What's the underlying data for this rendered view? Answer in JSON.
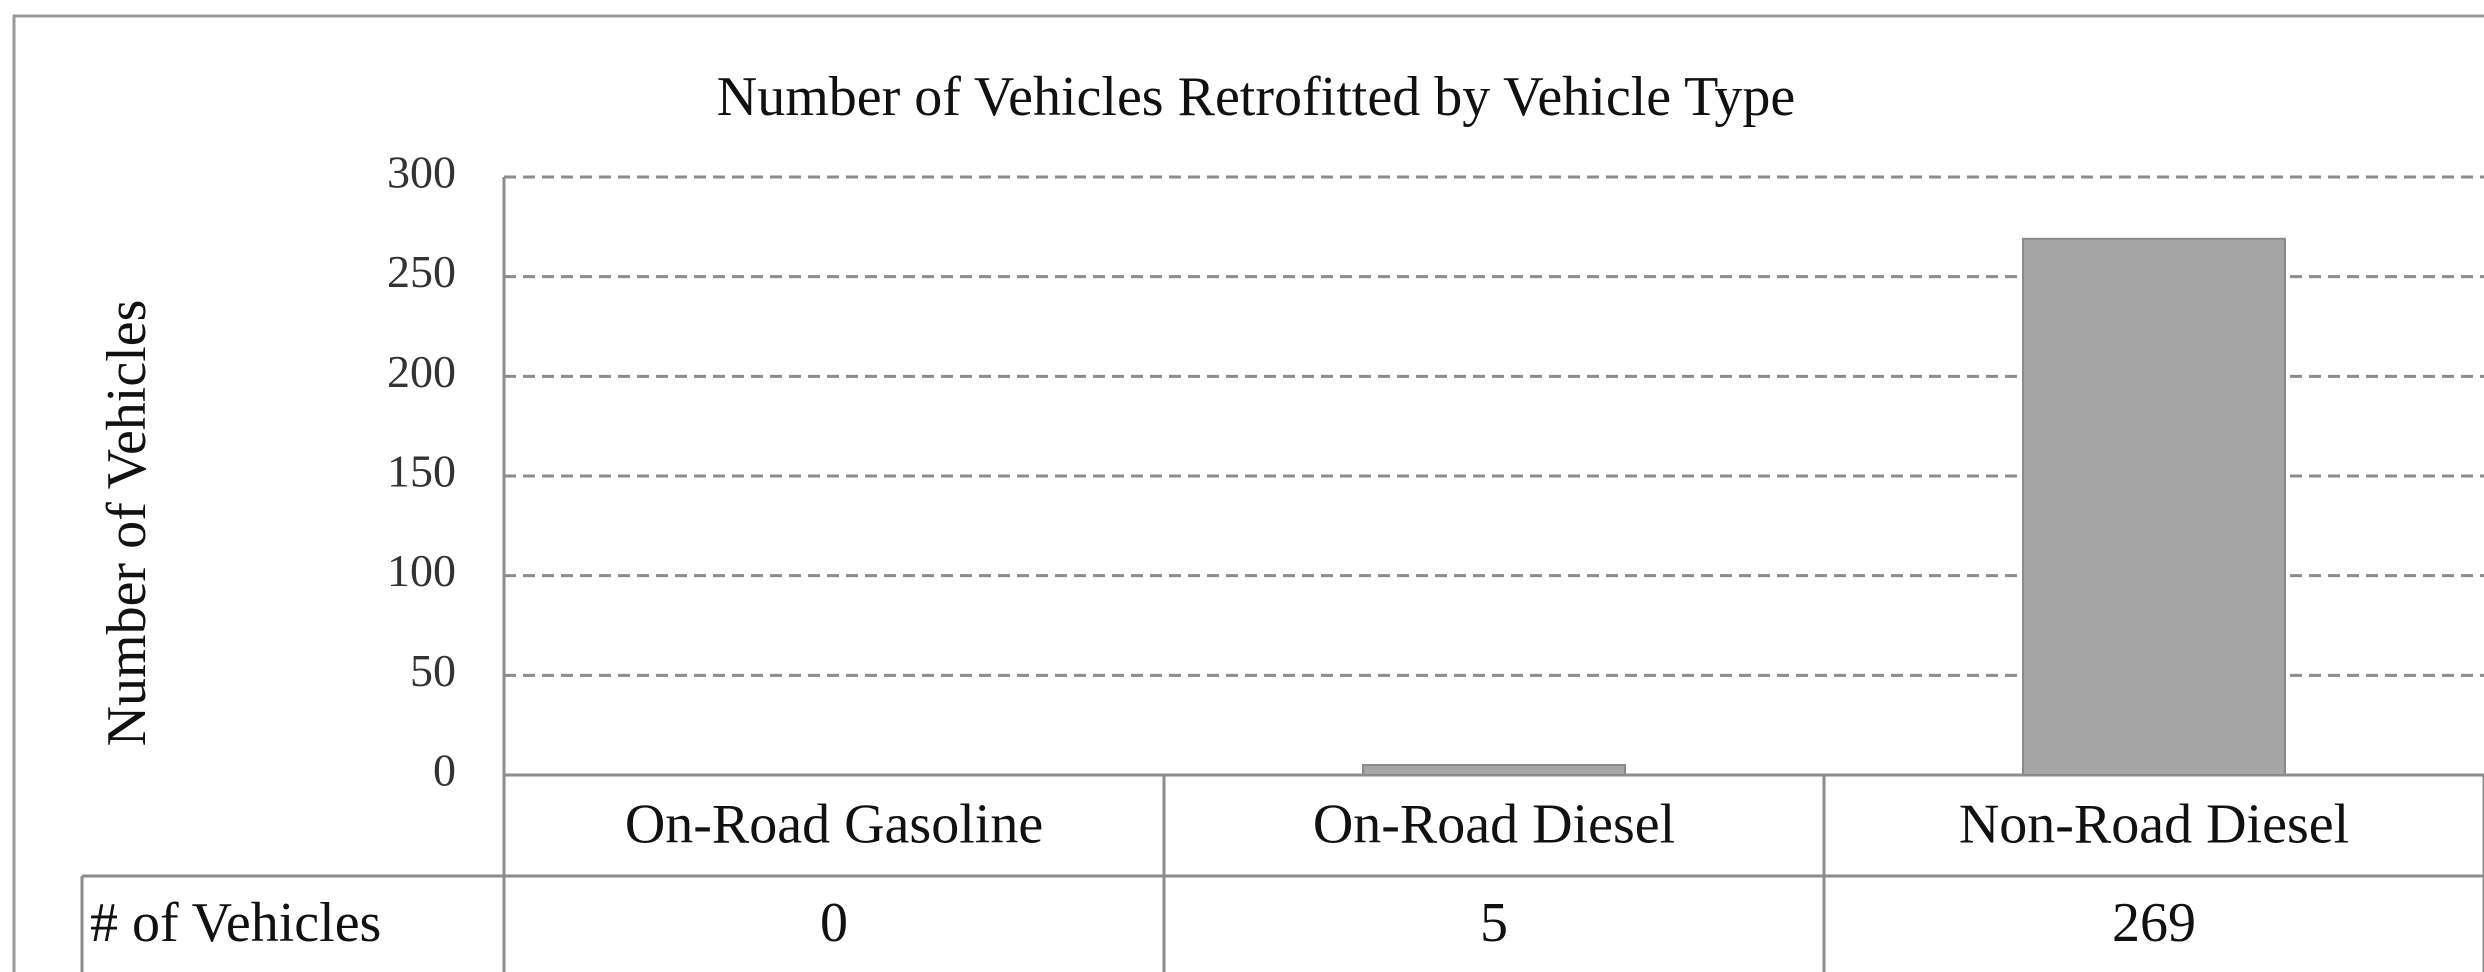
{
  "chart_data": {
    "type": "bar",
    "title": "Number of Vehicles Retrofitted by Vehicle Type",
    "y_label": "Number of Vehicles",
    "categories": [
      "On-Road Gasoline",
      "On-Road Diesel",
      "Non-Road Diesel"
    ],
    "values": [
      0,
      5,
      269
    ],
    "color": "#a6a6a6",
    "data_table_label": "# of Vehicles",
    "ylim": [
      0,
      300
    ],
    "yticks": [
      0,
      50,
      100,
      150,
      200,
      250,
      300
    ],
    "grid": true
  }
}
